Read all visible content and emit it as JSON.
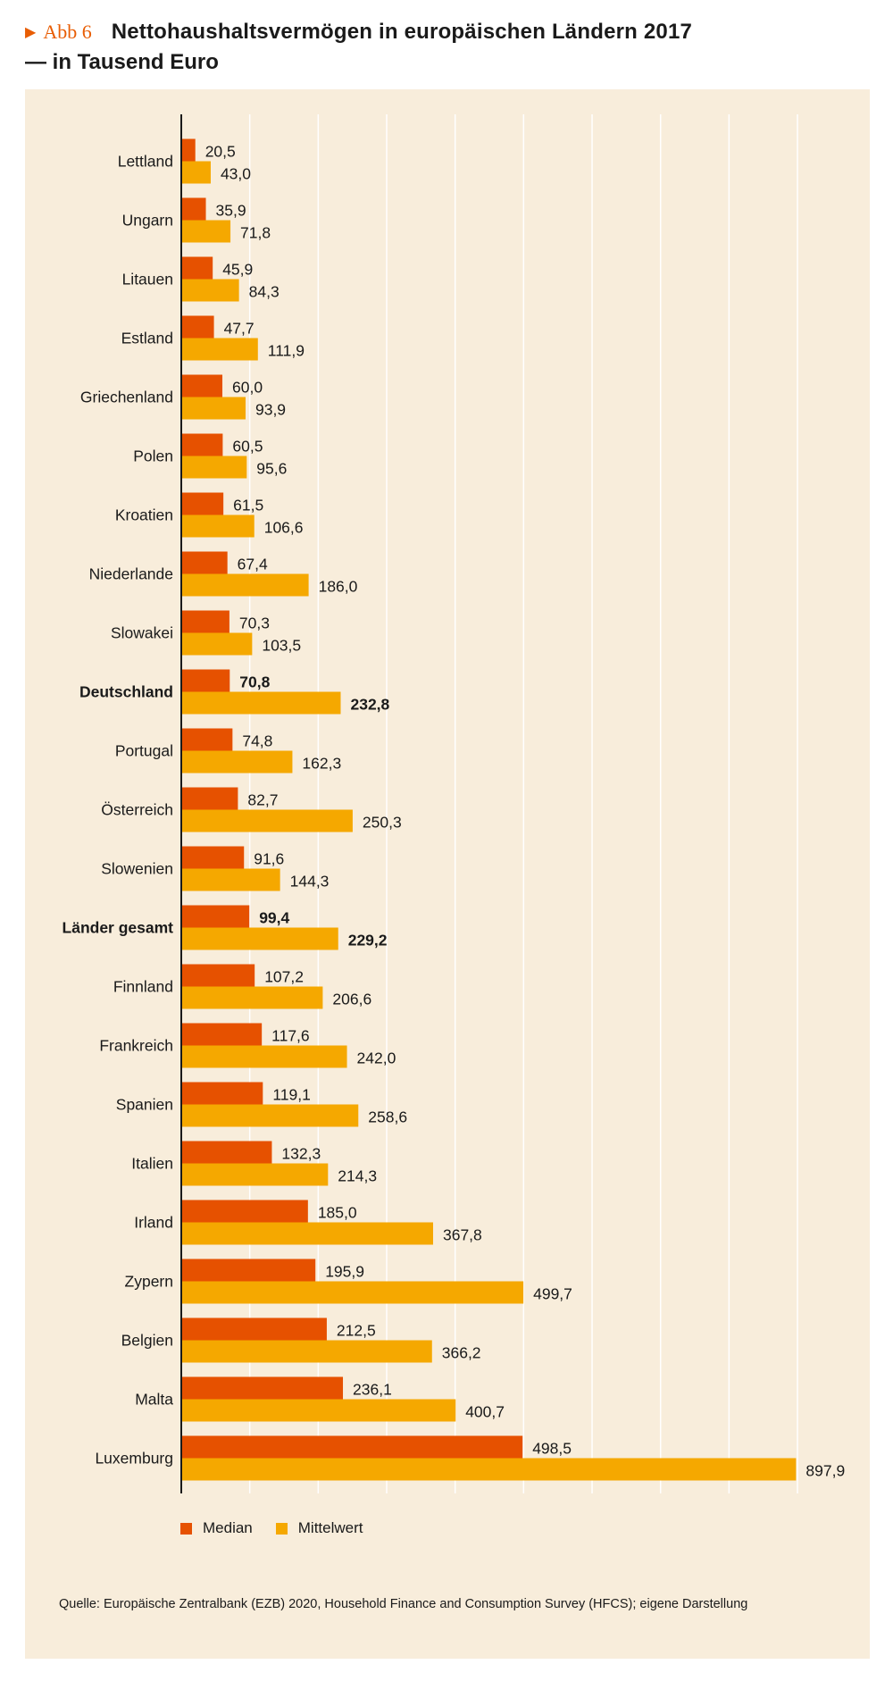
{
  "figure_label": "Abb 6",
  "title": "Nettohaushaltsvermögen in europäischen Ländern 2017",
  "subtitle": "— in Tausend Euro",
  "source": "Quelle: Europäische Zentralbank (EZB) 2020, Household Finance and Consumption Survey (HFCS); eigene Darstellung",
  "colors": {
    "median": "#e65100",
    "mittelwert": "#f5a800",
    "panel": "#f8eddb",
    "grid": "#ffffff",
    "accent": "#e85d04"
  },
  "chart_data": {
    "type": "bar",
    "orientation": "horizontal",
    "categories": [
      "Lettland",
      "Ungarn",
      "Litauen",
      "Estland",
      "Griechenland",
      "Polen",
      "Kroatien",
      "Niederlande",
      "Slowakei",
      "Deutschland",
      "Portugal",
      "Österreich",
      "Slowenien",
      "Länder gesamt",
      "Finnland",
      "Frankreich",
      "Spanien",
      "Italien",
      "Irland",
      "Zypern",
      "Belgien",
      "Malta",
      "Luxemburg"
    ],
    "highlighted_categories": [
      "Deutschland",
      "Länder gesamt"
    ],
    "series": [
      {
        "name": "Median",
        "values": [
          20.5,
          35.9,
          45.9,
          47.7,
          60.0,
          60.5,
          61.5,
          67.4,
          70.3,
          70.8,
          74.8,
          82.7,
          91.6,
          99.4,
          107.2,
          117.6,
          119.1,
          132.3,
          185.0,
          195.9,
          212.5,
          236.1,
          498.5
        ],
        "labels": [
          "20,5",
          "35,9",
          "45,9",
          "47,7",
          "60,0",
          "60,5",
          "61,5",
          "67,4",
          "70,3",
          "70,8",
          "74,8",
          "82,7",
          "91,6",
          "99,4",
          "107,2",
          "117,6",
          "119,1",
          "132,3",
          "185,0",
          "195,9",
          "212,5",
          "236,1",
          "498,5"
        ]
      },
      {
        "name": "Mittelwert",
        "values": [
          43.0,
          71.8,
          84.3,
          111.9,
          93.9,
          95.6,
          106.6,
          186.0,
          103.5,
          232.8,
          162.3,
          250.3,
          144.3,
          229.2,
          206.6,
          242.0,
          258.6,
          214.3,
          367.8,
          499.7,
          366.2,
          400.7,
          897.9
        ],
        "labels": [
          "43,0",
          "71,8",
          "84,3",
          "111,9",
          "93,9",
          "95,6",
          "106,6",
          "186,0",
          "103,5",
          "232,8",
          "162,3",
          "250,3",
          "144,3",
          "229,2",
          "206,6",
          "242,0",
          "258,6",
          "214,3",
          "367,8",
          "499,7",
          "366,2",
          "400,7",
          "897,9"
        ]
      }
    ],
    "xlim": [
      0,
      900
    ],
    "grid": true,
    "legend_position": "bottom-left"
  }
}
